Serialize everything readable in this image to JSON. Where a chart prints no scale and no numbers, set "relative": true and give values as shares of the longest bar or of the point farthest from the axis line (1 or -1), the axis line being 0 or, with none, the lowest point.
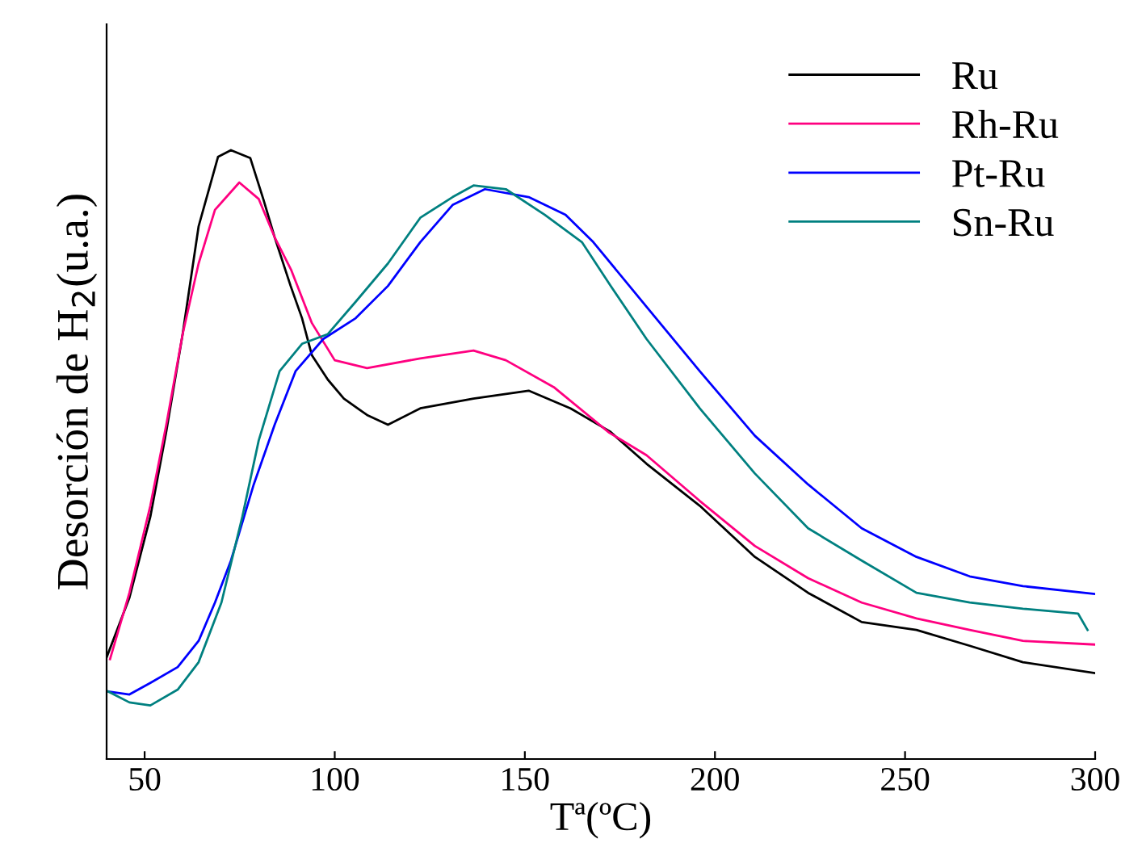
{
  "chart_data": {
    "type": "line",
    "relative": true,
    "xlabel": "Tª(ºC)",
    "ylabel": "Desorción de H$_{2}$(u.a.)",
    "xlim": [
      40,
      300
    ],
    "xticks": [
      50,
      100,
      150,
      200,
      250,
      300
    ],
    "legend": "top right",
    "grid": false,
    "marker": "none",
    "line_style": "solid",
    "series": [
      {
        "name": "Ru",
        "color": "#000000",
        "x": [
          40,
          46,
          51.5,
          55.7,
          60,
          64.2,
          69.3,
          72.7,
          77.8,
          81.2,
          84.2,
          88.4,
          91.4,
          94,
          98.2,
          102.4,
          108.5,
          114,
          122.5,
          136.5,
          151,
          162,
          172.4,
          182,
          196,
          210.5,
          224.5,
          238.6,
          253,
          267,
          281,
          300
        ],
        "values": [
          0.167,
          0.265,
          0.398,
          0.538,
          0.698,
          0.875,
          0.989,
          1.0,
          0.987,
          0.92,
          0.857,
          0.777,
          0.724,
          0.663,
          0.623,
          0.592,
          0.565,
          0.549,
          0.576,
          0.592,
          0.605,
          0.576,
          0.538,
          0.485,
          0.416,
          0.332,
          0.273,
          0.225,
          0.212,
          0.186,
          0.159,
          0.141
        ]
      },
      {
        "name": "Rh-Ru",
        "color": "#ff0080",
        "x": [
          40.9,
          46,
          51.5,
          55.7,
          60,
          64.2,
          68.5,
          74.9,
          80,
          84.2,
          88.5,
          94,
          100,
          108.5,
          122.5,
          136.5,
          145,
          157.8,
          172.2,
          182,
          196,
          210.5,
          224.5,
          238.6,
          253,
          267,
          281,
          300
        ],
        "values": [
          0.164,
          0.273,
          0.416,
          0.549,
          0.698,
          0.814,
          0.902,
          0.947,
          0.92,
          0.857,
          0.804,
          0.716,
          0.655,
          0.642,
          0.658,
          0.671,
          0.655,
          0.61,
          0.536,
          0.499,
          0.424,
          0.35,
          0.297,
          0.257,
          0.231,
          0.212,
          0.194,
          0.188
        ]
      },
      {
        "name": "Pt-Ru",
        "color": "#0000ff",
        "x": [
          40.4,
          46,
          51.5,
          58.7,
          64.2,
          68.5,
          72.7,
          78.7,
          84.2,
          89.7,
          97,
          105.5,
          114,
          122.5,
          131,
          139.5,
          151,
          160.7,
          168,
          182,
          196,
          210.5,
          224.5,
          238.6,
          253,
          267,
          281,
          300
        ],
        "values": [
          0.111,
          0.106,
          0.125,
          0.151,
          0.194,
          0.257,
          0.326,
          0.451,
          0.549,
          0.637,
          0.69,
          0.724,
          0.777,
          0.849,
          0.91,
          0.936,
          0.923,
          0.894,
          0.849,
          0.743,
          0.637,
          0.531,
          0.451,
          0.379,
          0.332,
          0.3,
          0.284,
          0.271
        ]
      },
      {
        "name": "Sn-Ru",
        "color": "#008080",
        "x": [
          40.4,
          46,
          51.5,
          58.7,
          64.2,
          70.2,
          75.7,
          80,
          85.5,
          91.4,
          98.2,
          105.5,
          114,
          122.5,
          131,
          136.5,
          145,
          155.2,
          165,
          172.6,
          182,
          196,
          210.5,
          224.5,
          238.6,
          253,
          267,
          281,
          295.5,
          298
        ],
        "values": [
          0.111,
          0.093,
          0.088,
          0.114,
          0.159,
          0.257,
          0.398,
          0.523,
          0.637,
          0.682,
          0.698,
          0.751,
          0.814,
          0.889,
          0.923,
          0.942,
          0.936,
          0.894,
          0.849,
          0.777,
          0.69,
          0.576,
          0.469,
          0.379,
          0.326,
          0.273,
          0.257,
          0.247,
          0.239,
          0.212
        ]
      }
    ]
  }
}
